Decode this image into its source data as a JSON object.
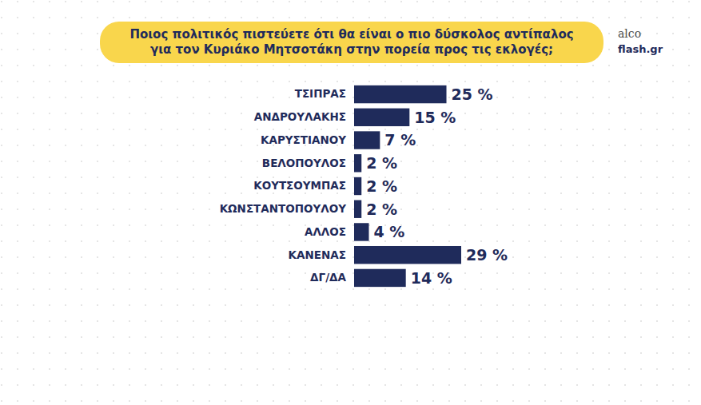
{
  "chart_data": {
    "type": "bar",
    "orientation": "horizontal",
    "title": "Ποιος πολιτικός πιστεύετε ότι θα είναι ο πιο δύσκολος αντίπαλος\nγια τον Κυριάκο Μητσοτάκη στην πορεία προς τις εκλογές;",
    "annotations": [
      "alco",
      "flash.gr"
    ],
    "categories": [
      "ΤΣΙΠΡΑΣ",
      "ΑΝΔΡΟΥΛΑΚΗΣ",
      "ΚΑΡΥΣΤΙΑΝΟΥ",
      "ΒΕΛΟΠΟΥΛΟΣ",
      "ΚΟΥΤΣΟΥΜΠΑΣ",
      "ΚΩΝΣΤΑΝΤΟΠΟΥΛΟΥ",
      "ΑΛΛΟΣ",
      "ΚΑΝΕΝΑΣ",
      "ΔΓ/ΔΑ"
    ],
    "values": [
      25,
      15,
      7,
      2,
      2,
      2,
      4,
      29,
      14
    ],
    "value_labels": [
      "25 %",
      "15 %",
      "7 %",
      "2 %",
      "2 %",
      "2 %",
      "4 %",
      "29 %",
      "14 %"
    ],
    "color": "#1f2b5b",
    "data_labels": true,
    "tick_labels": "y"
  }
}
